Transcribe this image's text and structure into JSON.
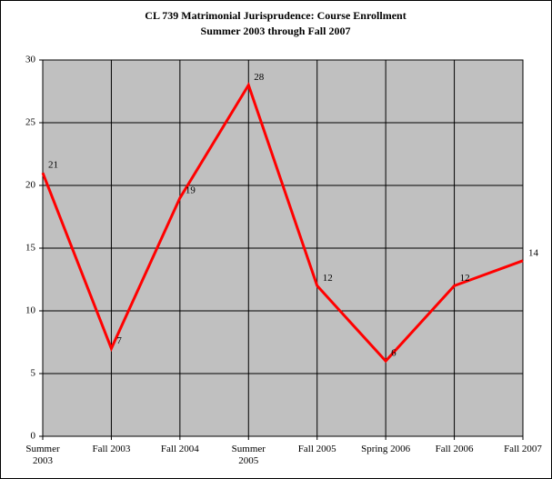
{
  "chart_data": {
    "type": "line",
    "title": "CL 739 Matrimonial Jurisprudence: Course Enrollment",
    "subtitle": "Summer 2003 through Fall 2007",
    "categories": [
      "Summer 2003",
      "Fall 2003",
      "Fall 2004",
      "Summer 2005",
      "Fall 2005",
      "Spring 2006",
      "Fall 2006",
      "Fall 2007"
    ],
    "values": [
      21,
      7,
      19,
      28,
      12,
      6,
      12,
      14
    ],
    "color": "#ff0000",
    "ylim": [
      0,
      30
    ],
    "yticks": [
      0,
      5,
      10,
      15,
      20,
      25,
      30
    ],
    "grid": true
  }
}
